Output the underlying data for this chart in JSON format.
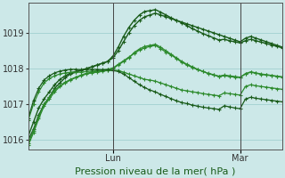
{
  "title": "Pression niveau de la mer( hPa )",
  "background_color": "#cce8e8",
  "grid_color": "#99cccc",
  "ylim": [
    1015.75,
    1019.85
  ],
  "xlim": [
    0,
    48
  ],
  "day_labels": [
    "Lun",
    "Mar"
  ],
  "lun_x": 16,
  "mar_x": 40,
  "font_size_label": 8,
  "font_size_tick": 7,
  "series": [
    {
      "color": "#1a5c1a",
      "lw": 1.0,
      "data": [
        1016.0,
        1016.3,
        1016.7,
        1017.0,
        1017.2,
        1017.45,
        1017.6,
        1017.75,
        1017.85,
        1017.9,
        1017.95,
        1018.0,
        1018.05,
        1018.1,
        1018.15,
        1018.2,
        1018.3,
        1018.5,
        1018.75,
        1019.0,
        1019.2,
        1019.35,
        1019.45,
        1019.5,
        1019.55,
        1019.5,
        1019.45,
        1019.4,
        1019.35,
        1019.3,
        1019.25,
        1019.2,
        1019.15,
        1019.1,
        1019.05,
        1019.0,
        1018.95,
        1018.9,
        1018.85,
        1018.8,
        1018.75,
        1018.85,
        1018.9,
        1018.85,
        1018.8,
        1018.75,
        1018.7,
        1018.65,
        1018.6
      ]
    },
    {
      "color": "#1a5c1a",
      "lw": 1.0,
      "data": [
        1016.1,
        1016.5,
        1016.9,
        1017.15,
        1017.35,
        1017.55,
        1017.7,
        1017.8,
        1017.88,
        1017.92,
        1017.96,
        1018.0,
        1018.05,
        1018.1,
        1018.15,
        1018.2,
        1018.35,
        1018.6,
        1018.9,
        1019.15,
        1019.35,
        1019.5,
        1019.6,
        1019.62,
        1019.65,
        1019.58,
        1019.5,
        1019.42,
        1019.35,
        1019.28,
        1019.2,
        1019.12,
        1019.05,
        1018.98,
        1018.92,
        1018.86,
        1018.8,
        1018.82,
        1018.78,
        1018.75,
        1018.72,
        1018.78,
        1018.82,
        1018.78,
        1018.74,
        1018.7,
        1018.66,
        1018.62,
        1018.58
      ]
    },
    {
      "color": "#2d8b2d",
      "lw": 0.9,
      "data": [
        1015.85,
        1016.2,
        1016.6,
        1016.95,
        1017.15,
        1017.35,
        1017.5,
        1017.6,
        1017.68,
        1017.75,
        1017.8,
        1017.85,
        1017.88,
        1017.9,
        1017.92,
        1017.95,
        1018.0,
        1018.1,
        1018.2,
        1018.3,
        1018.45,
        1018.55,
        1018.62,
        1018.65,
        1018.68,
        1018.6,
        1018.5,
        1018.4,
        1018.3,
        1018.2,
        1018.12,
        1018.05,
        1017.98,
        1017.92,
        1017.86,
        1017.82,
        1017.78,
        1017.8,
        1017.78,
        1017.76,
        1017.75,
        1017.85,
        1017.9,
        1017.87,
        1017.84,
        1017.82,
        1017.8,
        1017.78,
        1017.76
      ]
    },
    {
      "color": "#2d8b2d",
      "lw": 0.9,
      "data": [
        1015.9,
        1016.25,
        1016.65,
        1017.0,
        1017.2,
        1017.4,
        1017.52,
        1017.62,
        1017.7,
        1017.76,
        1017.82,
        1017.87,
        1017.9,
        1017.93,
        1017.96,
        1017.98,
        1018.02,
        1018.12,
        1018.22,
        1018.32,
        1018.42,
        1018.52,
        1018.58,
        1018.62,
        1018.65,
        1018.56,
        1018.46,
        1018.38,
        1018.28,
        1018.18,
        1018.1,
        1018.03,
        1017.97,
        1017.92,
        1017.87,
        1017.83,
        1017.79,
        1017.82,
        1017.8,
        1017.78,
        1017.76,
        1017.86,
        1017.91,
        1017.88,
        1017.85,
        1017.83,
        1017.81,
        1017.79,
        1017.77
      ]
    },
    {
      "color": "#2d8b2d",
      "lw": 0.9,
      "data": [
        1016.55,
        1017.0,
        1017.35,
        1017.6,
        1017.72,
        1017.8,
        1017.85,
        1017.88,
        1017.9,
        1017.9,
        1017.9,
        1017.92,
        1017.93,
        1017.94,
        1017.95,
        1017.95,
        1017.95,
        1017.95,
        1017.9,
        1017.85,
        1017.8,
        1017.75,
        1017.7,
        1017.68,
        1017.65,
        1017.6,
        1017.55,
        1017.5,
        1017.45,
        1017.4,
        1017.38,
        1017.35,
        1017.33,
        1017.3,
        1017.28,
        1017.26,
        1017.24,
        1017.32,
        1017.3,
        1017.28,
        1017.26,
        1017.5,
        1017.55,
        1017.52,
        1017.5,
        1017.48,
        1017.46,
        1017.44,
        1017.42
      ]
    },
    {
      "color": "#1a5c1a",
      "lw": 0.9,
      "data": [
        1016.6,
        1017.1,
        1017.45,
        1017.68,
        1017.8,
        1017.88,
        1017.93,
        1017.96,
        1017.98,
        1017.98,
        1017.97,
        1017.98,
        1017.98,
        1017.98,
        1017.97,
        1017.97,
        1017.95,
        1017.92,
        1017.85,
        1017.75,
        1017.65,
        1017.55,
        1017.47,
        1017.4,
        1017.35,
        1017.28,
        1017.22,
        1017.16,
        1017.1,
        1017.05,
        1017.02,
        1016.98,
        1016.95,
        1016.92,
        1016.9,
        1016.88,
        1016.86,
        1016.96,
        1016.93,
        1016.9,
        1016.88,
        1017.15,
        1017.2,
        1017.17,
        1017.15,
        1017.13,
        1017.11,
        1017.09,
        1017.07
      ]
    }
  ]
}
